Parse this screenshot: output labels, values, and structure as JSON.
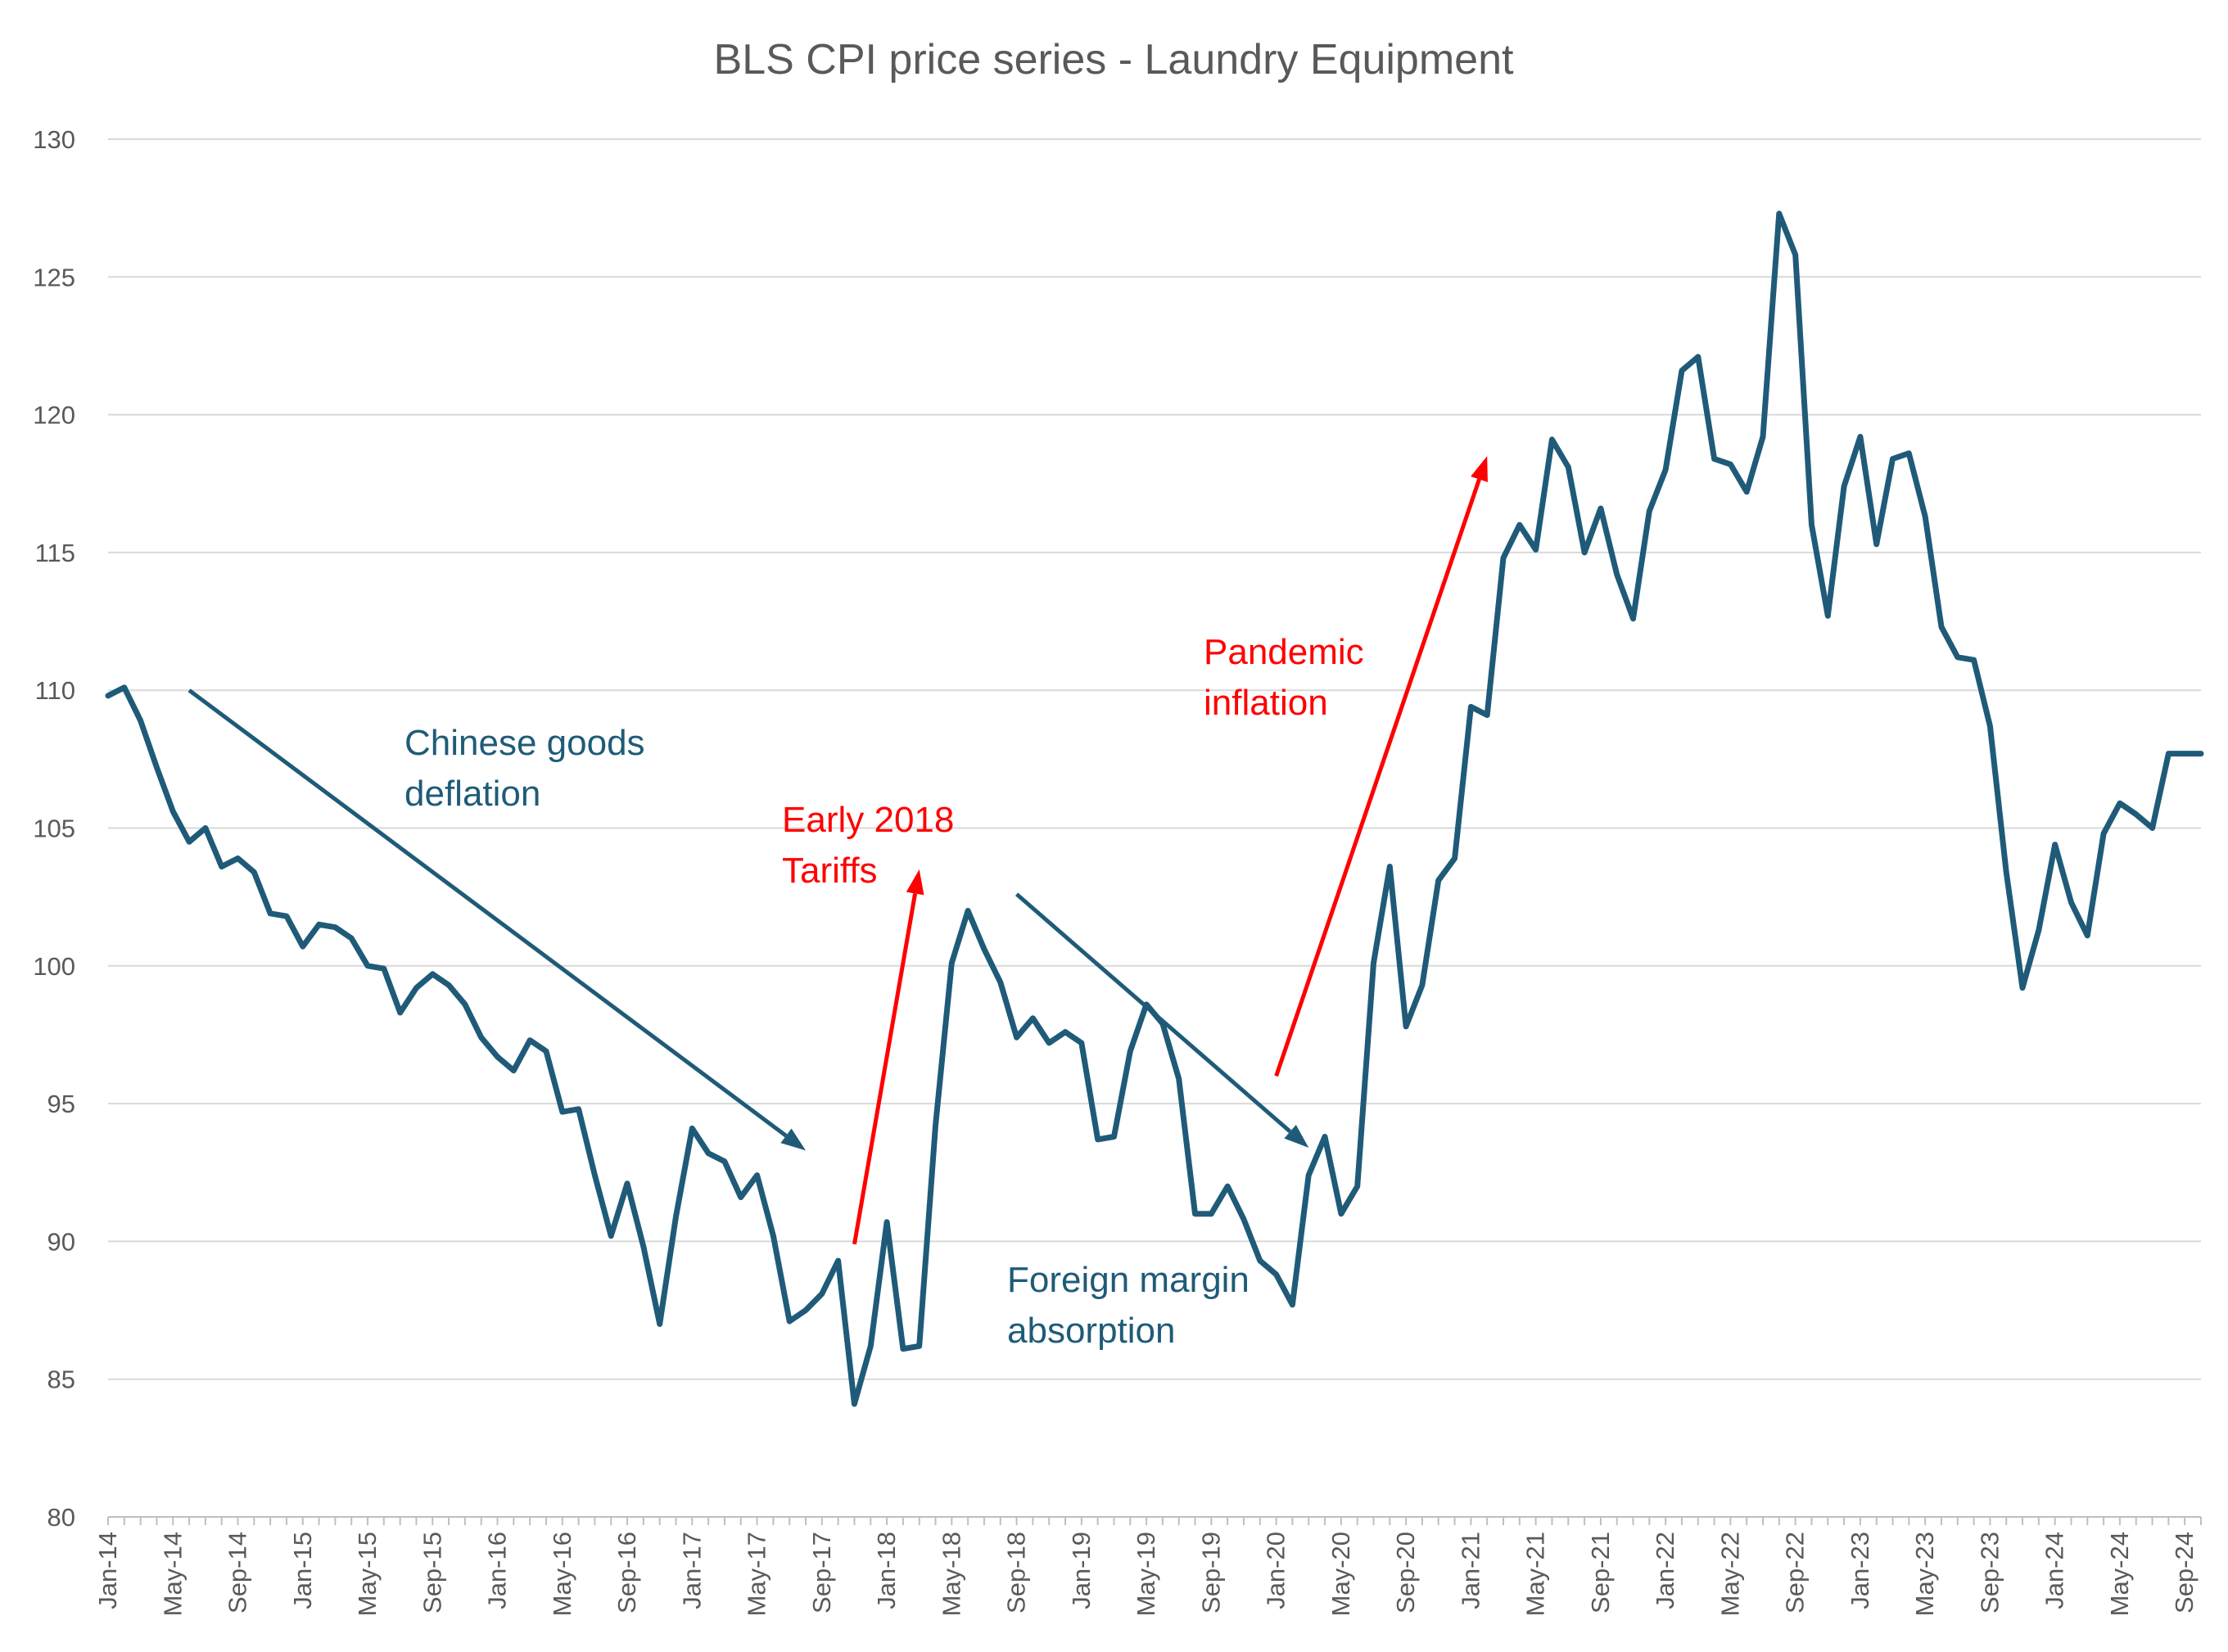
{
  "chart_data": {
    "type": "line",
    "title": "BLS CPI price series - Laundry Equipment",
    "xlabel": "",
    "ylabel": "",
    "ylim": [
      80,
      130
    ],
    "yticks": [
      80,
      85,
      90,
      95,
      100,
      105,
      110,
      115,
      120,
      125,
      130
    ],
    "grid": "horizontal",
    "line_color": "#1f5b78",
    "x_tick_labels": [
      "Jan-14",
      "May-14",
      "Sep-14",
      "Jan-15",
      "May-15",
      "Sep-15",
      "Jan-16",
      "May-16",
      "Sep-16",
      "Jan-17",
      "May-17",
      "Sep-17",
      "Jan-18",
      "May-18",
      "Sep-18",
      "Jan-19",
      "May-19",
      "Sep-19",
      "Jan-20",
      "May-20",
      "Sep-20",
      "Jan-21",
      "May-21",
      "Sep-21",
      "Jan-22",
      "May-22",
      "Sep-22",
      "Jan-23",
      "May-23",
      "Sep-23",
      "Jan-24",
      "May-24",
      "Sep-24"
    ],
    "series": [
      {
        "start_month": "Jan-14",
        "values": [
          109.8,
          110.1,
          108.9,
          107.2,
          105.6,
          104.5,
          105.0,
          103.6,
          103.9,
          103.4,
          101.9,
          101.8,
          100.7,
          101.5,
          101.4,
          101.0,
          100.0,
          99.9,
          98.3,
          99.2,
          99.7,
          99.3,
          98.6,
          97.4,
          96.7,
          96.2,
          97.3,
          96.9,
          94.7,
          94.8,
          92.4,
          90.2,
          92.1,
          89.8,
          87.0,
          90.9,
          94.1,
          93.2,
          92.9,
          91.6,
          92.4,
          90.2,
          87.1,
          87.5,
          88.1,
          89.3,
          84.1,
          86.2,
          90.7,
          86.1,
          86.2,
          94.2,
          100.1,
          102.0,
          100.6,
          99.4,
          97.4,
          98.1,
          97.2,
          97.6,
          97.2,
          93.7,
          93.8,
          96.9,
          98.6,
          97.9,
          95.9,
          91.0,
          91.0,
          92.0,
          90.8,
          89.3,
          88.8,
          87.7,
          92.4,
          93.8,
          91.0,
          92.0,
          100.1,
          103.6,
          97.8,
          99.3,
          103.1,
          103.9,
          109.4,
          109.1,
          114.8,
          116.0,
          115.1,
          119.1,
          118.1,
          115.0,
          116.6,
          114.2,
          112.6,
          116.5,
          118.0,
          121.6,
          122.1,
          118.4,
          118.2,
          117.2,
          119.2,
          127.3,
          125.8,
          116.0,
          112.7,
          117.4,
          119.2,
          115.3,
          118.4,
          118.6,
          116.3,
          112.3,
          111.2,
          111.1,
          108.7,
          103.4,
          99.2,
          101.3,
          104.4,
          102.3,
          101.1,
          104.8,
          105.9,
          105.5,
          105.0,
          107.7,
          107.7,
          107.7
        ]
      }
    ],
    "annotations": [
      {
        "id": "chinese",
        "lines": [
          "Chinese goods",
          "deflation"
        ],
        "color": "#1f5b78",
        "arrow": {
          "from": [
            "Jun-14",
            110.0
          ],
          "to": [
            "Aug-17",
            93.3
          ]
        }
      },
      {
        "id": "tariffs",
        "lines": [
          "Early 2018",
          "Tariffs"
        ],
        "color": "#ff0000",
        "arrow": {
          "from": [
            "Nov-17",
            89.9
          ],
          "to": [
            "Mar-18",
            103.5
          ]
        }
      },
      {
        "id": "foreign",
        "lines": [
          "Foreign margin",
          "absorption"
        ],
        "color": "#1f5b78",
        "arrow": {
          "from": [
            "Sep-18",
            102.6
          ],
          "to": [
            "Mar-20",
            93.4
          ]
        }
      },
      {
        "id": "pandemic",
        "lines": [
          "Pandemic",
          "inflation"
        ],
        "color": "#ff0000",
        "arrow": {
          "from": [
            "Jan-20",
            96.0
          ],
          "to": [
            "Feb-21",
            118.5
          ]
        }
      }
    ]
  }
}
